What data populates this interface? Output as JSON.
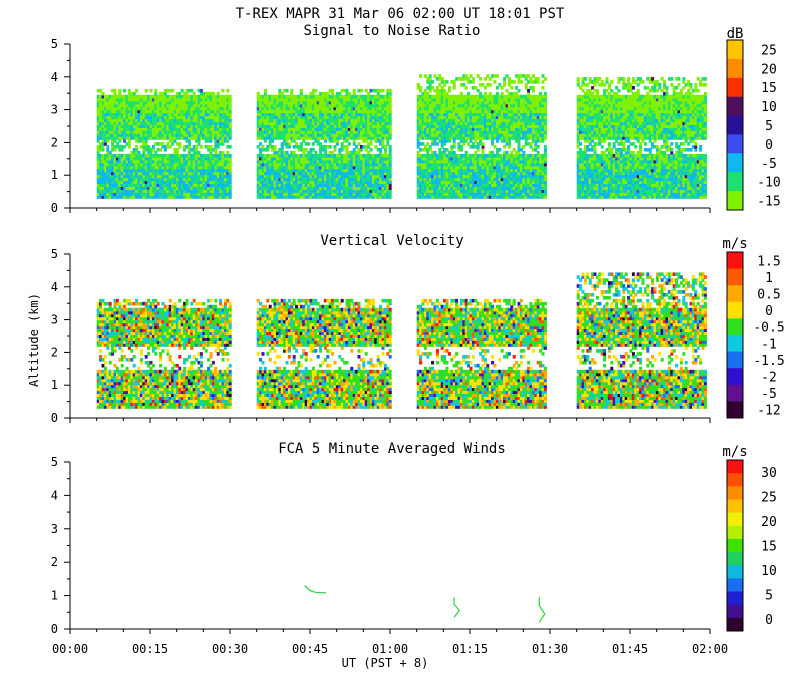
{
  "title": "T-REX   MAPR 31 Mar 06   02:00 UT   18:01   PST",
  "xlabel": "UT  (PST + 8)",
  "ylabel": "Altitude (km)",
  "chart_data": [
    {
      "type": "heatmap",
      "title": "Signal to Noise Ratio",
      "units": "dB",
      "xlim": [
        "00:00",
        "02:00"
      ],
      "ylim": [
        0,
        5
      ],
      "y_ticks": [
        "0",
        "1",
        "2",
        "3",
        "4",
        "5"
      ],
      "colorbar": {
        "tick_labels": [
          "25",
          "20",
          "15",
          "10",
          "5",
          "0",
          "-5",
          "-10",
          "-15"
        ],
        "colors": [
          "#ffc400",
          "#ff8c00",
          "#ff3000",
          "#501060",
          "#2a1098",
          "#3c4cf0",
          "#10b8f0",
          "#1ee070",
          "#80f000"
        ]
      },
      "data_segments": [
        {
          "start": "00:05",
          "end": "00:30",
          "alt_bottom": 0.3,
          "alt_top": 3.6
        },
        {
          "start": "00:35",
          "end": "01:00",
          "alt_bottom": 0.3,
          "alt_top": 3.6
        },
        {
          "start": "01:05",
          "end": "01:29",
          "alt_bottom": 0.3,
          "alt_top": 4.0
        },
        {
          "start": "01:35",
          "end": "01:59",
          "alt_bottom": 0.3,
          "alt_top": 3.9
        }
      ]
    },
    {
      "type": "heatmap",
      "title": "Vertical Velocity",
      "units": "m/s",
      "xlim": [
        "00:00",
        "02:00"
      ],
      "ylim": [
        0,
        5
      ],
      "y_ticks": [
        "0",
        "1",
        "2",
        "3",
        "4",
        "5"
      ],
      "colorbar": {
        "tick_labels": [
          "1.5",
          "1",
          "0.5",
          "0",
          "-0.5",
          "-1",
          "-1.5",
          "-2",
          "-5",
          "-12"
        ],
        "colors": [
          "#ff1010",
          "#ff5a00",
          "#ffa800",
          "#ffe000",
          "#30e020",
          "#10c8e0",
          "#1870f0",
          "#3010d0",
          "#601090",
          "#300030"
        ]
      },
      "data_segments": [
        {
          "start": "00:05",
          "end": "00:30",
          "alt_bottom": 0.3,
          "alt_top": 3.6
        },
        {
          "start": "00:35",
          "end": "01:00",
          "alt_bottom": 0.3,
          "alt_top": 3.6
        },
        {
          "start": "01:05",
          "end": "01:29",
          "alt_bottom": 0.3,
          "alt_top": 3.6
        },
        {
          "start": "01:35",
          "end": "01:59",
          "alt_bottom": 0.3,
          "alt_top": 4.4
        }
      ]
    },
    {
      "type": "line",
      "title": "FCA 5 Minute Averaged Winds",
      "units": "m/s",
      "xlim": [
        "00:00",
        "02:00"
      ],
      "ylim": [
        0,
        5
      ],
      "y_ticks": [
        "0",
        "1",
        "2",
        "3",
        "4",
        "5"
      ],
      "x_ticks": [
        "00:00",
        "00:15",
        "00:30",
        "00:45",
        "01:00",
        "01:15",
        "01:30",
        "01:45",
        "02:00"
      ],
      "colorbar": {
        "tick_labels": [
          "30",
          "25",
          "20",
          "15",
          "10",
          "5",
          "0"
        ],
        "colors": [
          "#ff1010",
          "#ff5000",
          "#ff8c00",
          "#ffc000",
          "#f0f000",
          "#b0f000",
          "#40e000",
          "#20d060",
          "#10b8e0",
          "#1870f0",
          "#2020d0",
          "#401090",
          "#300030"
        ]
      },
      "series": [
        {
          "color": "#30d040",
          "points": [
            [
              "00:44",
              1.3
            ],
            [
              "00:45",
              1.15
            ],
            [
              "00:46",
              1.1
            ],
            [
              "00:48",
              1.08
            ]
          ]
        },
        {
          "color": "#30d040",
          "points": [
            [
              "01:12",
              0.95
            ],
            [
              "01:12",
              0.75
            ],
            [
              "01:13",
              0.55
            ],
            [
              "01:12",
              0.35
            ]
          ]
        },
        {
          "color": "#30d040",
          "points": [
            [
              "01:28",
              0.95
            ],
            [
              "01:28",
              0.7
            ],
            [
              "01:29",
              0.45
            ],
            [
              "01:28",
              0.2
            ]
          ]
        }
      ]
    }
  ]
}
